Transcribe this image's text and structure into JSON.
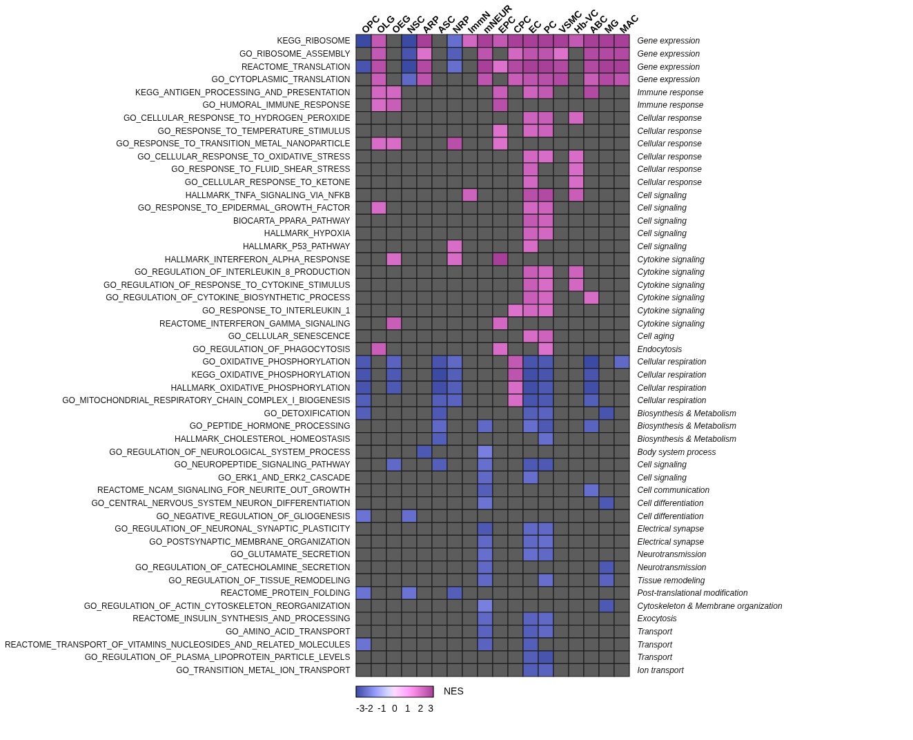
{
  "chart_data": {
    "type": "heatmap",
    "clim": [
      -3,
      3
    ],
    "cticks": [
      -3,
      -2,
      -1,
      0,
      1,
      2,
      3
    ],
    "clabel": "NES",
    "categories": [
      "OPC",
      "OLG",
      "OEG",
      "NSC",
      "ARP",
      "ASC",
      "NRP",
      "ImmN",
      "mNEUR",
      "EPC",
      "CPC",
      "EC",
      "PC",
      "VSMC",
      "Hb-VC",
      "ABC",
      "MG",
      "MAC"
    ],
    "y_categories": [
      "KEGG_RIBOSOME",
      "GO_RIBOSOME_ASSEMBLY",
      "REACTOME_TRANSLATION",
      "GO_CYTOPLASMIC_TRANSLATION",
      "KEGG_ANTIGEN_PROCESSING_AND_PRESENTATION",
      "GO_HUMORAL_IMMUNE_RESPONSE",
      "GO_CELLULAR_RESPONSE_TO_HYDROGEN_PEROXIDE",
      "GO_RESPONSE_TO_TEMPERATURE_STIMULUS",
      "GO_RESPONSE_TO_TRANSITION_METAL_NANOPARTICLE",
      "GO_CELLULAR_RESPONSE_TO_OXIDATIVE_STRESS",
      "GO_RESPONSE_TO_FLUID_SHEAR_STRESS",
      "GO_CELLULAR_RESPONSE_TO_KETONE",
      "HALLMARK_TNFA_SIGNALING_VIA_NFKB",
      "GO_RESPONSE_TO_EPIDERMAL_GROWTH_FACTOR",
      "BIOCARTA_PPARA_PATHWAY",
      "HALLMARK_HYPOXIA",
      "HALLMARK_P53_PATHWAY",
      "HALLMARK_INTERFERON_ALPHA_RESPONSE",
      "GO_REGULATION_OF_INTERLEUKIN_8_PRODUCTION",
      "GO_REGULATION_OF_RESPONSE_TO_CYTOKINE_STIMULUS",
      "GO_REGULATION_OF_CYTOKINE_BIOSYNTHETIC_PROCESS",
      "GO_RESPONSE_TO_INTERLEUKIN_1",
      "REACTOME_INTERFERON_GAMMA_SIGNALING",
      "GO_CELLULAR_SENESCENCE",
      "GO_REGULATION_OF_PHAGOCYTOSIS",
      "GO_OXIDATIVE_PHOSPHORYLATION",
      "KEGG_OXIDATIVE_PHOSPHORYLATION",
      "HALLMARK_OXIDATIVE_PHOSPHORYLATION",
      "GO_MITOCHONDRIAL_RESPIRATORY_CHAIN_COMPLEX_I_BIOGENESIS",
      "GO_DETOXIFICATION",
      "GO_PEPTIDE_HORMONE_PROCESSING",
      "HALLMARK_CHOLESTEROL_HOMEOSTASIS",
      "GO_REGULATION_OF_NEUROLOGICAL_SYSTEM_PROCESS",
      "GO_NEUROPEPTIDE_SIGNALING_PATHWAY",
      "GO_ERK1_AND_ERK2_CASCADE",
      "REACTOME_NCAM_SIGNALING_FOR_NEURITE_OUT_GROWTH",
      "GO_CENTRAL_NERVOUS_SYSTEM_NEURON_DIFFERENTIATION",
      "GO_NEGATIVE_REGULATION_OF_GLIOGENESIS",
      "GO_REGULATION_OF_NEURONAL_SYNAPTIC_PLASTICITY",
      "GO_POSTSYNAPTIC_MEMBRANE_ORGANIZATION",
      "GO_GLUTAMATE_SECRETION",
      "GO_REGULATION_OF_CATECHOLAMINE_SECRETION",
      "GO_REGULATION_OF_TISSUE_REMODELING",
      "REACTOME_PROTEIN_FOLDING",
      "GO_REGULATION_OF_ACTIN_CYTOSKELETON_REORGANIZATION",
      "REACTOME_INSULIN_SYNTHESIS_AND_PROCESSING",
      "GO_AMINO_ACID_TRANSPORT",
      "REACTOME_TRANSPORT_OF_VITAMINS_NUCLEOSIDES_AND_RELATED_MOLECULES",
      "GO_REGULATION_OF_PLASMA_LIPOPROTEIN_PARTICLE_LEVELS",
      "GO_TRANSITION_METAL_ION_TRANSPORT"
    ],
    "y2_categories": [
      "Gene expression",
      "Gene expression",
      "Gene expression",
      "Gene expression",
      "Immune response",
      "Immune response",
      "Cellular response",
      "Cellular response",
      "Cellular response",
      "Cellular response",
      "Cellular response",
      "Cellular response",
      "Cell signaling",
      "Cell signaling",
      "Cell signaling",
      "Cell signaling",
      "Cell signaling",
      "Cytokine signaling",
      "Cytokine signaling",
      "Cytokine signaling",
      "Cytokine signaling",
      "Cytokine signaling",
      "Cytokine signaling",
      "Cell aging",
      "Endocytosis",
      "Cellular respiration",
      "Cellular respiration",
      "Cellular respiration",
      "Cellular respiration",
      "Biosynthesis & Metabolism",
      "Biosynthesis & Metabolism",
      "Biosynthesis & Metabolism",
      "Body system process",
      "Cell signaling",
      "Cell signaling",
      "Cell communication",
      "Cell differentiation",
      "Cell differentiation",
      "Electrical synapse",
      "Electrical synapse",
      "Neurotransmission",
      "Neurotransmission",
      "Tissue remodeling",
      "Post-translational modification",
      "Cytoskeleton & Membrane organization",
      "Exocytosis",
      "Transport",
      "Transport",
      "Transport",
      "Ion transport"
    ],
    "cells": [
      [
        -3,
        2.5,
        null,
        -3,
        3,
        null,
        -2.3,
        2.2,
        3,
        2.5,
        3,
        3,
        3,
        3,
        2.5,
        3,
        3,
        3
      ],
      [
        null,
        2.5,
        null,
        -2.8,
        2,
        null,
        -2.6,
        null,
        2.6,
        null,
        2.2,
        2.6,
        2.6,
        2,
        null,
        2.8,
        2.8,
        2.8
      ],
      [
        -2.8,
        2.7,
        null,
        -3,
        2.8,
        null,
        -2.3,
        null,
        3,
        2,
        2.8,
        3,
        3,
        2.8,
        null,
        2.8,
        3,
        3
      ],
      [
        null,
        2.4,
        null,
        -2.4,
        2.6,
        null,
        null,
        null,
        2.6,
        null,
        2.4,
        2.6,
        2.7,
        2.8,
        null,
        2.4,
        2.8,
        2.6
      ],
      [
        null,
        2.2,
        2.2,
        null,
        null,
        null,
        null,
        null,
        null,
        2.4,
        null,
        2.3,
        2.5,
        null,
        null,
        2.8,
        null,
        null
      ],
      [
        null,
        2.1,
        2.4,
        null,
        null,
        null,
        null,
        null,
        null,
        2.7,
        null,
        null,
        null,
        null,
        null,
        null,
        null,
        null
      ],
      [
        null,
        null,
        null,
        null,
        null,
        null,
        null,
        null,
        null,
        null,
        null,
        2.3,
        2.4,
        null,
        2.2,
        null,
        null,
        null
      ],
      [
        null,
        null,
        null,
        null,
        null,
        null,
        null,
        null,
        null,
        2,
        null,
        2.2,
        2.3,
        null,
        null,
        null,
        null,
        null
      ],
      [
        null,
        2.1,
        2.1,
        null,
        null,
        null,
        2.7,
        null,
        null,
        2,
        null,
        null,
        null,
        null,
        null,
        null,
        null,
        null
      ],
      [
        null,
        null,
        null,
        null,
        null,
        null,
        null,
        null,
        null,
        null,
        null,
        2.2,
        2.1,
        null,
        2.1,
        null,
        null,
        null
      ],
      [
        null,
        null,
        null,
        null,
        null,
        null,
        null,
        null,
        null,
        null,
        null,
        2.3,
        null,
        null,
        2.1,
        null,
        null,
        null
      ],
      [
        null,
        null,
        null,
        null,
        null,
        null,
        null,
        null,
        null,
        null,
        null,
        2.2,
        null,
        null,
        2.1,
        null,
        null,
        null
      ],
      [
        null,
        null,
        null,
        null,
        null,
        null,
        null,
        2.3,
        null,
        null,
        null,
        2.7,
        2.8,
        null,
        2.4,
        null,
        null,
        null
      ],
      [
        null,
        2.1,
        null,
        null,
        null,
        null,
        null,
        null,
        null,
        null,
        null,
        2.2,
        2.3,
        null,
        null,
        null,
        null,
        null
      ],
      [
        null,
        null,
        null,
        null,
        null,
        null,
        null,
        null,
        null,
        null,
        null,
        2.5,
        2.3,
        null,
        null,
        null,
        null,
        null
      ],
      [
        null,
        null,
        null,
        null,
        null,
        null,
        null,
        null,
        null,
        null,
        null,
        2.3,
        2.2,
        null,
        null,
        null,
        null,
        null
      ],
      [
        null,
        null,
        null,
        null,
        null,
        null,
        2.1,
        null,
        null,
        null,
        null,
        2.1,
        null,
        null,
        null,
        null,
        null,
        null
      ],
      [
        null,
        null,
        2.1,
        null,
        null,
        null,
        2.1,
        null,
        null,
        3,
        null,
        null,
        null,
        null,
        null,
        null,
        null,
        null
      ],
      [
        null,
        null,
        null,
        null,
        null,
        null,
        null,
        null,
        null,
        null,
        null,
        2.4,
        2.2,
        null,
        2.3,
        null,
        null,
        null
      ],
      [
        null,
        null,
        null,
        null,
        null,
        null,
        null,
        null,
        null,
        null,
        null,
        2.4,
        2.1,
        null,
        2.2,
        null,
        null,
        null
      ],
      [
        null,
        null,
        null,
        null,
        null,
        null,
        null,
        null,
        null,
        null,
        null,
        2.4,
        2.2,
        null,
        null,
        2.1,
        null,
        null
      ],
      [
        null,
        null,
        null,
        null,
        null,
        null,
        null,
        null,
        null,
        null,
        2,
        2.2,
        2.1,
        null,
        null,
        null,
        null,
        null
      ],
      [
        null,
        null,
        2.4,
        null,
        null,
        null,
        null,
        null,
        null,
        2.2,
        null,
        null,
        null,
        null,
        null,
        null,
        null,
        null
      ],
      [
        null,
        null,
        null,
        null,
        null,
        null,
        null,
        null,
        null,
        null,
        null,
        2.1,
        2.3,
        null,
        null,
        null,
        null,
        null
      ],
      [
        null,
        2.4,
        null,
        null,
        null,
        null,
        null,
        null,
        null,
        2.1,
        null,
        null,
        2,
        null,
        null,
        null,
        null,
        null
      ],
      [
        -2.7,
        null,
        -2.5,
        null,
        null,
        -2.8,
        -2.4,
        null,
        null,
        null,
        2.5,
        -2.8,
        -2.7,
        null,
        null,
        -3,
        null,
        -2.4
      ],
      [
        -2.8,
        null,
        -2.7,
        null,
        null,
        -3,
        -2.6,
        null,
        null,
        null,
        2.6,
        -2.9,
        -2.8,
        null,
        null,
        -2.8,
        null,
        null
      ],
      [
        -2.8,
        null,
        -2.7,
        null,
        null,
        -2.9,
        -2.6,
        null,
        null,
        null,
        2.1,
        -2.9,
        -2.7,
        null,
        null,
        -2.9,
        null,
        null
      ],
      [
        -2.6,
        null,
        null,
        null,
        null,
        -2.6,
        -2.5,
        null,
        null,
        null,
        2.1,
        -2.8,
        -2.7,
        null,
        null,
        -2.6,
        null,
        null
      ],
      [
        -2.6,
        null,
        null,
        null,
        null,
        -2.7,
        null,
        null,
        null,
        null,
        null,
        -2.6,
        -2.5,
        null,
        null,
        null,
        -2.8,
        null
      ],
      [
        null,
        null,
        null,
        null,
        null,
        -2.4,
        null,
        null,
        -2.4,
        null,
        null,
        -2.3,
        -2.7,
        null,
        null,
        -2.5,
        null,
        null
      ],
      [
        null,
        null,
        null,
        null,
        null,
        -2.6,
        null,
        null,
        null,
        null,
        null,
        null,
        -2.3,
        null,
        null,
        null,
        null,
        null
      ],
      [
        null,
        null,
        null,
        null,
        -2.7,
        null,
        null,
        null,
        -2,
        null,
        null,
        null,
        null,
        null,
        null,
        null,
        null,
        null
      ],
      [
        null,
        null,
        -2.4,
        null,
        null,
        -2.6,
        null,
        null,
        -2.3,
        null,
        null,
        -2.7,
        -2.7,
        null,
        null,
        null,
        null,
        null
      ],
      [
        null,
        null,
        null,
        null,
        null,
        null,
        null,
        null,
        -2.4,
        null,
        null,
        -2.3,
        null,
        null,
        null,
        null,
        null,
        null
      ],
      [
        null,
        null,
        null,
        null,
        null,
        null,
        null,
        null,
        -2.6,
        null,
        null,
        null,
        null,
        null,
        null,
        -2.3,
        null,
        null
      ],
      [
        null,
        null,
        null,
        null,
        null,
        null,
        null,
        null,
        -2.2,
        null,
        null,
        null,
        null,
        null,
        null,
        null,
        -2.7,
        null
      ],
      [
        -2.2,
        null,
        null,
        -2.3,
        null,
        null,
        null,
        null,
        null,
        null,
        null,
        null,
        null,
        null,
        null,
        null,
        null,
        null
      ],
      [
        null,
        null,
        null,
        null,
        null,
        null,
        null,
        null,
        -2.7,
        null,
        null,
        -2.4,
        -2.4,
        null,
        null,
        null,
        null,
        null
      ],
      [
        null,
        null,
        null,
        null,
        null,
        null,
        null,
        null,
        -2.4,
        null,
        null,
        -2.4,
        -2.3,
        null,
        null,
        null,
        null,
        null
      ],
      [
        null,
        null,
        null,
        null,
        null,
        null,
        null,
        null,
        -2.3,
        null,
        null,
        -2.3,
        -2.4,
        null,
        null,
        null,
        null,
        null
      ],
      [
        null,
        null,
        null,
        null,
        null,
        null,
        null,
        null,
        -2.4,
        null,
        null,
        null,
        null,
        null,
        null,
        null,
        -2.7,
        null
      ],
      [
        null,
        null,
        null,
        null,
        null,
        null,
        null,
        null,
        -2.4,
        null,
        null,
        null,
        -2.3,
        null,
        null,
        null,
        -2.5,
        null
      ],
      [
        -2.2,
        null,
        null,
        -2.2,
        null,
        null,
        -2.6,
        null,
        null,
        null,
        null,
        null,
        null,
        null,
        null,
        null,
        null,
        null
      ],
      [
        null,
        null,
        null,
        null,
        null,
        null,
        null,
        null,
        -2,
        null,
        null,
        null,
        null,
        null,
        null,
        null,
        -2.7,
        null
      ],
      [
        null,
        null,
        null,
        null,
        null,
        null,
        null,
        null,
        -2.4,
        null,
        null,
        -2.5,
        -2.4,
        null,
        null,
        null,
        null,
        null
      ],
      [
        null,
        null,
        null,
        null,
        null,
        null,
        null,
        null,
        -2.5,
        null,
        null,
        -2.6,
        -2.4,
        null,
        null,
        null,
        null,
        null
      ],
      [
        -2.2,
        null,
        null,
        null,
        null,
        null,
        null,
        null,
        -2.5,
        null,
        null,
        -2.6,
        null,
        null,
        null,
        null,
        null,
        null
      ],
      [
        null,
        null,
        null,
        null,
        null,
        null,
        null,
        null,
        null,
        null,
        null,
        -2.6,
        -2.8,
        null,
        null,
        null,
        null,
        null
      ],
      [
        null,
        null,
        null,
        null,
        null,
        null,
        null,
        null,
        null,
        null,
        null,
        -2.6,
        -2.5,
        null,
        null,
        null,
        null,
        null
      ]
    ]
  }
}
